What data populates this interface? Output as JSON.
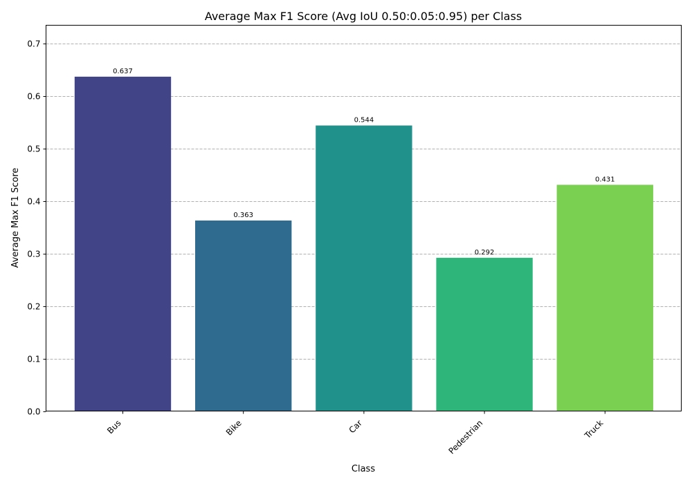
{
  "chart_data": {
    "type": "bar",
    "title": "Average Max F1 Score (Avg IoU 0.50:0.05:0.95) per Class",
    "xlabel": "Class",
    "ylabel": "Average Max F1 Score",
    "categories": [
      "Bus",
      "Bike",
      "Car",
      "Pedestrian",
      "Truck"
    ],
    "values": [
      0.637,
      0.363,
      0.544,
      0.292,
      0.431
    ],
    "value_labels": [
      "0.637",
      "0.363",
      "0.544",
      "0.292",
      "0.431"
    ],
    "colors": [
      "#414487",
      "#2f6b8e",
      "#21918c",
      "#2eb67a",
      "#7ad151"
    ],
    "ylim": [
      0,
      0.735
    ],
    "yticks": [
      0.0,
      0.1,
      0.2,
      0.3,
      0.4,
      0.5,
      0.6,
      0.7
    ],
    "ytick_labels": [
      "0.0",
      "0.1",
      "0.2",
      "0.3",
      "0.4",
      "0.5",
      "0.6",
      "0.7"
    ],
    "grid": "horizontal dashed",
    "grid_color": "#b0b0b0",
    "x_tick_rotation": "45 degrees"
  }
}
